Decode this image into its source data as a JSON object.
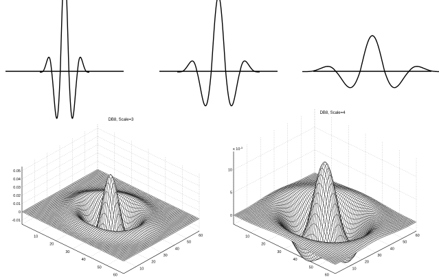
{
  "chart_data": [
    {
      "type": "line",
      "title": "",
      "description_shape": "wavelet profile, narrow support",
      "support": [
        -1,
        1
      ],
      "peak": 1.0,
      "axes": "none"
    },
    {
      "type": "line",
      "title": "",
      "description_shape": "wavelet profile, medium support",
      "support": [
        -1,
        1
      ],
      "peak": 0.55,
      "axes": "none"
    },
    {
      "type": "line",
      "title": "",
      "description_shape": "wavelet profile, wide support",
      "support": [
        -1,
        1
      ],
      "peak": 0.3,
      "axes": "none"
    },
    {
      "type": "surface",
      "title": "DB8, Scale=3",
      "x_ticks": [
        "10",
        "20",
        "30",
        "40",
        "50",
        "60"
      ],
      "y_ticks": [
        "10",
        "20",
        "30",
        "40",
        "50",
        "60"
      ],
      "z_ticks": [
        "-0.01",
        "0",
        "0.01",
        "0.02",
        "0.03",
        "0.04",
        "0.05"
      ],
      "zlim": [
        -0.015,
        0.055
      ],
      "peak": 0.05,
      "grid": true
    },
    {
      "type": "surface",
      "title": "DB8, Scale=4",
      "z_exponent_label": "x 10",
      "z_exponent": "-3",
      "x_ticks": [
        "10",
        "20",
        "30",
        "40",
        "50",
        "60"
      ],
      "y_ticks": [
        "10",
        "20",
        "30",
        "40",
        "50",
        "60"
      ],
      "z_ticks": [
        "0",
        "5",
        "10"
      ],
      "zlim": [
        -2,
        14
      ],
      "peak": 12.5,
      "grid": true
    }
  ]
}
